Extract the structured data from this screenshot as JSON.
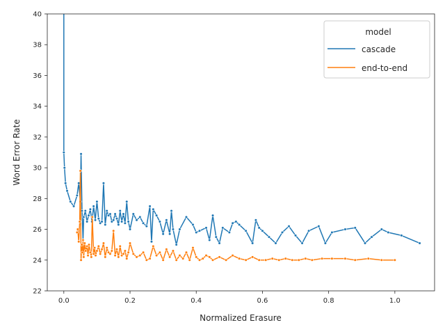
{
  "chart_data": {
    "type": "line",
    "title": "",
    "xlabel": "Normalized Erasure",
    "ylabel": "Word Error Rate",
    "xlim": [
      -0.05,
      1.12
    ],
    "ylim": [
      22,
      40
    ],
    "xticks": [
      0.0,
      0.2,
      0.4,
      0.6,
      0.8,
      1.0
    ],
    "xtick_labels": [
      "0.0",
      "0.2",
      "0.4",
      "0.6",
      "0.8",
      "1.0"
    ],
    "yticks": [
      22,
      24,
      26,
      28,
      30,
      32,
      34,
      36,
      38,
      40
    ],
    "ytick_labels": [
      "22",
      "24",
      "26",
      "28",
      "30",
      "32",
      "34",
      "36",
      "38",
      "40"
    ],
    "grid": false,
    "legend": {
      "title": "model",
      "position": "top-right",
      "entries": [
        "cascade",
        "end-to-end"
      ]
    },
    "series": [
      {
        "name": "cascade",
        "color": "#1f77b4",
        "markers": true,
        "x": [
          0.0,
          0.0,
          0.002,
          0.005,
          0.01,
          0.02,
          0.03,
          0.04,
          0.045,
          0.05,
          0.052,
          0.055,
          0.058,
          0.06,
          0.065,
          0.07,
          0.075,
          0.08,
          0.085,
          0.09,
          0.095,
          0.1,
          0.105,
          0.11,
          0.115,
          0.12,
          0.125,
          0.13,
          0.135,
          0.14,
          0.145,
          0.15,
          0.155,
          0.16,
          0.165,
          0.17,
          0.175,
          0.18,
          0.185,
          0.19,
          0.195,
          0.2,
          0.21,
          0.22,
          0.23,
          0.24,
          0.25,
          0.26,
          0.265,
          0.27,
          0.28,
          0.29,
          0.3,
          0.31,
          0.32,
          0.325,
          0.33,
          0.34,
          0.35,
          0.37,
          0.39,
          0.4,
          0.41,
          0.43,
          0.44,
          0.45,
          0.46,
          0.47,
          0.48,
          0.5,
          0.51,
          0.52,
          0.53,
          0.55,
          0.57,
          0.58,
          0.59,
          0.6,
          0.62,
          0.64,
          0.66,
          0.68,
          0.7,
          0.72,
          0.74,
          0.77,
          0.79,
          0.81,
          0.85,
          0.88,
          0.91,
          0.93,
          0.96,
          0.98,
          1.02,
          1.075
        ],
        "y": [
          40.5,
          31.0,
          30.0,
          29.0,
          28.5,
          27.8,
          27.5,
          28.2,
          29.0,
          27.8,
          30.9,
          27.2,
          25.3,
          26.8,
          27.2,
          26.5,
          26.9,
          27.3,
          26.5,
          27.5,
          26.6,
          27.8,
          26.7,
          26.4,
          26.5,
          29.0,
          26.3,
          27.2,
          26.9,
          27.0,
          26.5,
          26.6,
          27.0,
          26.7,
          26.3,
          27.2,
          26.5,
          27.0,
          26.4,
          27.8,
          26.5,
          26.0,
          27.0,
          26.6,
          26.8,
          26.4,
          26.2,
          27.5,
          25.2,
          27.3,
          26.9,
          26.5,
          25.7,
          26.6,
          25.7,
          27.2,
          26.0,
          25.0,
          26.0,
          26.8,
          26.3,
          25.8,
          25.9,
          26.1,
          25.3,
          26.9,
          25.5,
          25.1,
          26.1,
          25.8,
          26.4,
          26.5,
          26.3,
          25.9,
          25.1,
          26.6,
          26.1,
          25.9,
          25.5,
          25.1,
          25.8,
          26.2,
          25.6,
          25.1,
          25.9,
          26.2,
          25.1,
          25.8,
          26.0,
          26.1,
          25.1,
          25.5,
          26.0,
          25.8,
          25.6,
          25.1
        ]
      },
      {
        "name": "end-to-end",
        "color": "#ff7f0e",
        "markers": true,
        "x": [
          0.04,
          0.042,
          0.045,
          0.048,
          0.05,
          0.052,
          0.054,
          0.056,
          0.058,
          0.06,
          0.063,
          0.066,
          0.07,
          0.073,
          0.076,
          0.08,
          0.083,
          0.086,
          0.09,
          0.093,
          0.096,
          0.1,
          0.105,
          0.11,
          0.115,
          0.12,
          0.125,
          0.13,
          0.135,
          0.14,
          0.145,
          0.15,
          0.155,
          0.16,
          0.165,
          0.17,
          0.175,
          0.18,
          0.185,
          0.19,
          0.195,
          0.2,
          0.21,
          0.22,
          0.23,
          0.24,
          0.25,
          0.26,
          0.27,
          0.28,
          0.29,
          0.3,
          0.31,
          0.32,
          0.33,
          0.34,
          0.35,
          0.36,
          0.37,
          0.38,
          0.39,
          0.4,
          0.41,
          0.42,
          0.43,
          0.44,
          0.45,
          0.47,
          0.49,
          0.51,
          0.53,
          0.55,
          0.57,
          0.59,
          0.61,
          0.63,
          0.65,
          0.67,
          0.69,
          0.71,
          0.73,
          0.75,
          0.78,
          0.81,
          0.85,
          0.88,
          0.92,
          0.96,
          1.0
        ],
        "y": [
          25.8,
          26.0,
          25.2,
          26.5,
          29.8,
          24.0,
          25.0,
          24.5,
          25.3,
          24.2,
          25.1,
          24.6,
          24.9,
          24.3,
          25.0,
          24.5,
          24.2,
          26.8,
          24.4,
          24.8,
          24.3,
          24.6,
          24.9,
          24.4,
          24.7,
          25.1,
          24.2,
          24.8,
          24.5,
          24.4,
          24.6,
          25.9,
          24.3,
          24.7,
          24.2,
          24.9,
          24.3,
          24.4,
          24.6,
          24.1,
          24.5,
          25.1,
          24.4,
          24.2,
          24.3,
          24.5,
          24.0,
          24.1,
          24.9,
          24.3,
          24.5,
          24.0,
          24.7,
          24.2,
          24.6,
          24.0,
          24.3,
          24.1,
          24.5,
          24.0,
          24.8,
          24.2,
          24.0,
          24.1,
          24.3,
          24.2,
          24.0,
          24.2,
          24.0,
          24.3,
          24.1,
          24.0,
          24.2,
          24.0,
          24.0,
          24.1,
          24.0,
          24.1,
          24.0,
          24.0,
          24.1,
          24.0,
          24.1,
          24.1,
          24.1,
          24.0,
          24.1,
          24.0,
          24.0
        ]
      }
    ]
  }
}
